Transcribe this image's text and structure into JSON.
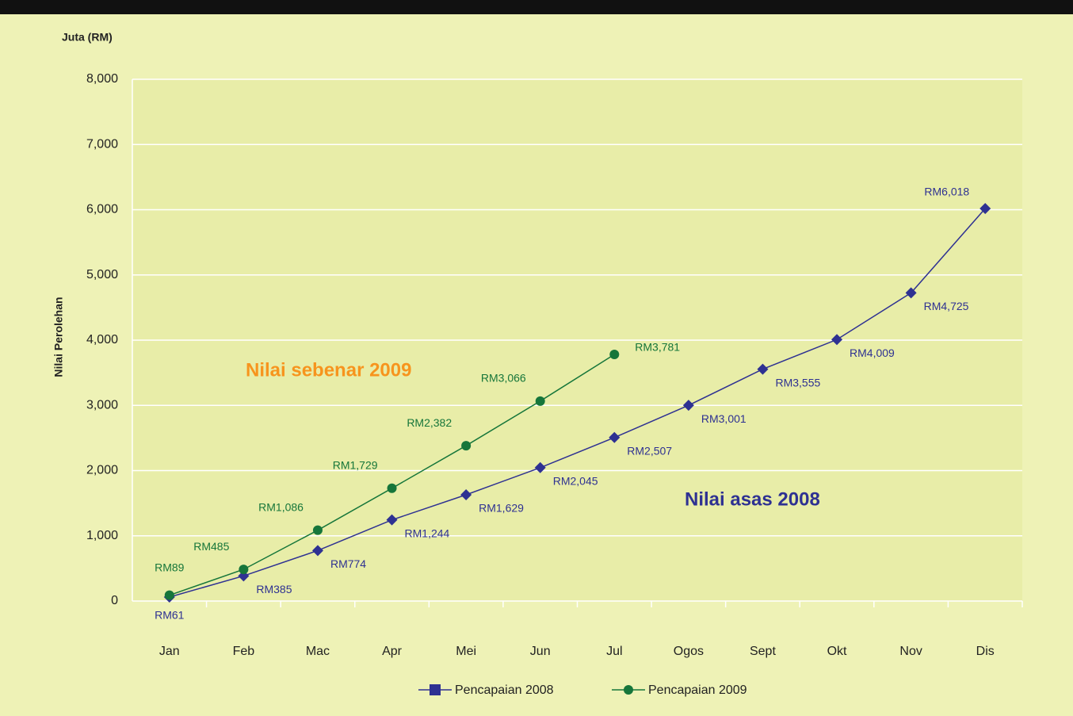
{
  "chart_data": {
    "type": "line",
    "title": "Juta (RM)",
    "y_label": "Nilai Perolehan",
    "annotations": [
      "Nilai sebenar 2009",
      "Nilai asas 2008"
    ],
    "categories": [
      "Jan",
      "Feb",
      "Mac",
      "Apr",
      "Mei",
      "Jun",
      "Jul",
      "Ogos",
      "Sept",
      "Okt",
      "Nov",
      "Dis"
    ],
    "series": [
      {
        "name": "Pencapaian 2008",
        "color": "#2e3192",
        "marker": "diamond",
        "values": [
          61,
          385,
          774,
          1244,
          1629,
          2045,
          2507,
          3001,
          3555,
          4009,
          4725,
          6018
        ],
        "value_labels": [
          "RM61",
          "RM385",
          "RM774",
          "RM1,244",
          "RM1,629",
          "RM2,045",
          "RM2,507",
          "RM3,001",
          "RM3,555",
          "RM4,009",
          "RM4,725",
          "RM6,018"
        ]
      },
      {
        "name": "Pencapaian 2009",
        "color": "#16763a",
        "marker": "circle",
        "values": [
          89,
          485,
          1086,
          1729,
          2382,
          3066,
          3781,
          null,
          null,
          null,
          null,
          null
        ],
        "value_labels": [
          "RM89",
          "RM485",
          "RM1,086",
          "RM1,729",
          "RM2,382",
          "RM3,066",
          "RM3,781",
          null,
          null,
          null,
          null,
          null
        ]
      }
    ],
    "ylim": [
      0,
      8000
    ],
    "yticks": [
      0,
      {
        "value": 1000,
        "label": "1,000"
      },
      {
        "value": 2000,
        "label": "2,000"
      },
      {
        "value": 3000,
        "label": "3,000"
      },
      {
        "value": 4000,
        "label": "4,000"
      },
      {
        "value": 5000,
        "label": "5,000"
      },
      {
        "value": 6000,
        "label": "6,000"
      },
      {
        "value": 7000,
        "label": "7,000"
      },
      {
        "value": 8000,
        "label": "8,000"
      }
    ],
    "grid": true,
    "legend": "bottom"
  }
}
